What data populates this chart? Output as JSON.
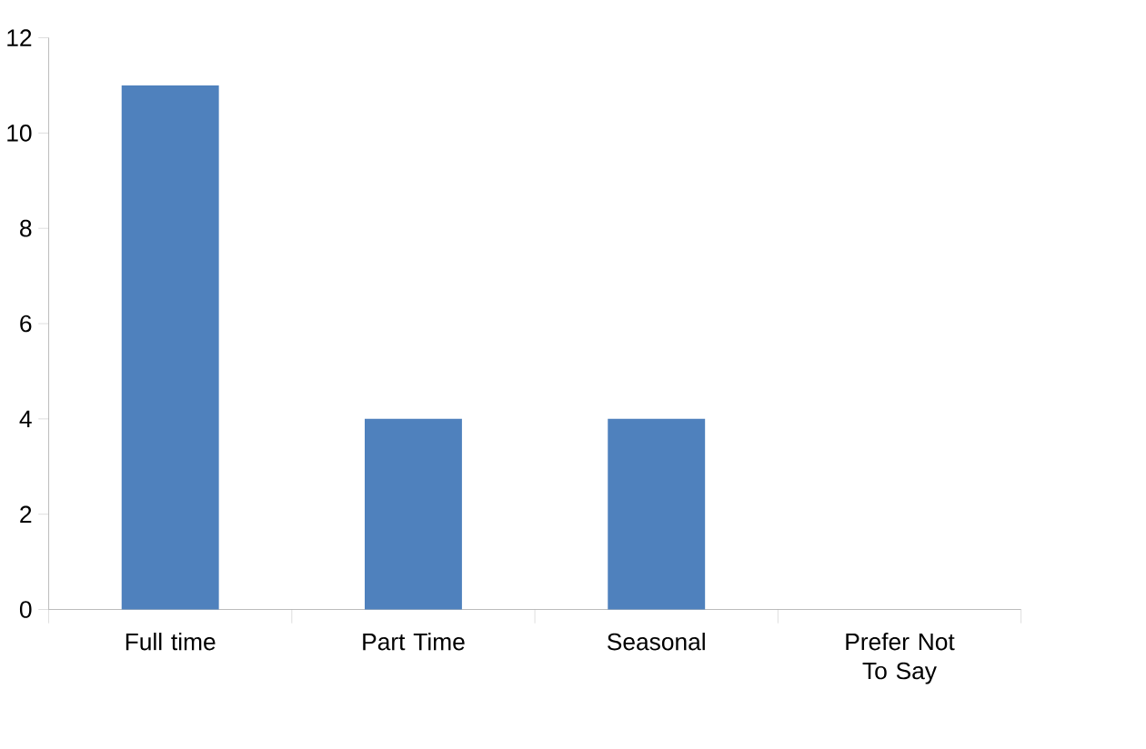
{
  "chart_data": {
    "type": "bar",
    "categories": [
      "Full time",
      "Part Time",
      "Seasonal",
      "Prefer Not To Say"
    ],
    "values": [
      11,
      4,
      4,
      0
    ],
    "color": "#4f81bd",
    "ylim": [
      0,
      12
    ],
    "yticks": [
      0,
      2,
      4,
      6,
      8,
      10,
      12
    ],
    "grid": false
  }
}
